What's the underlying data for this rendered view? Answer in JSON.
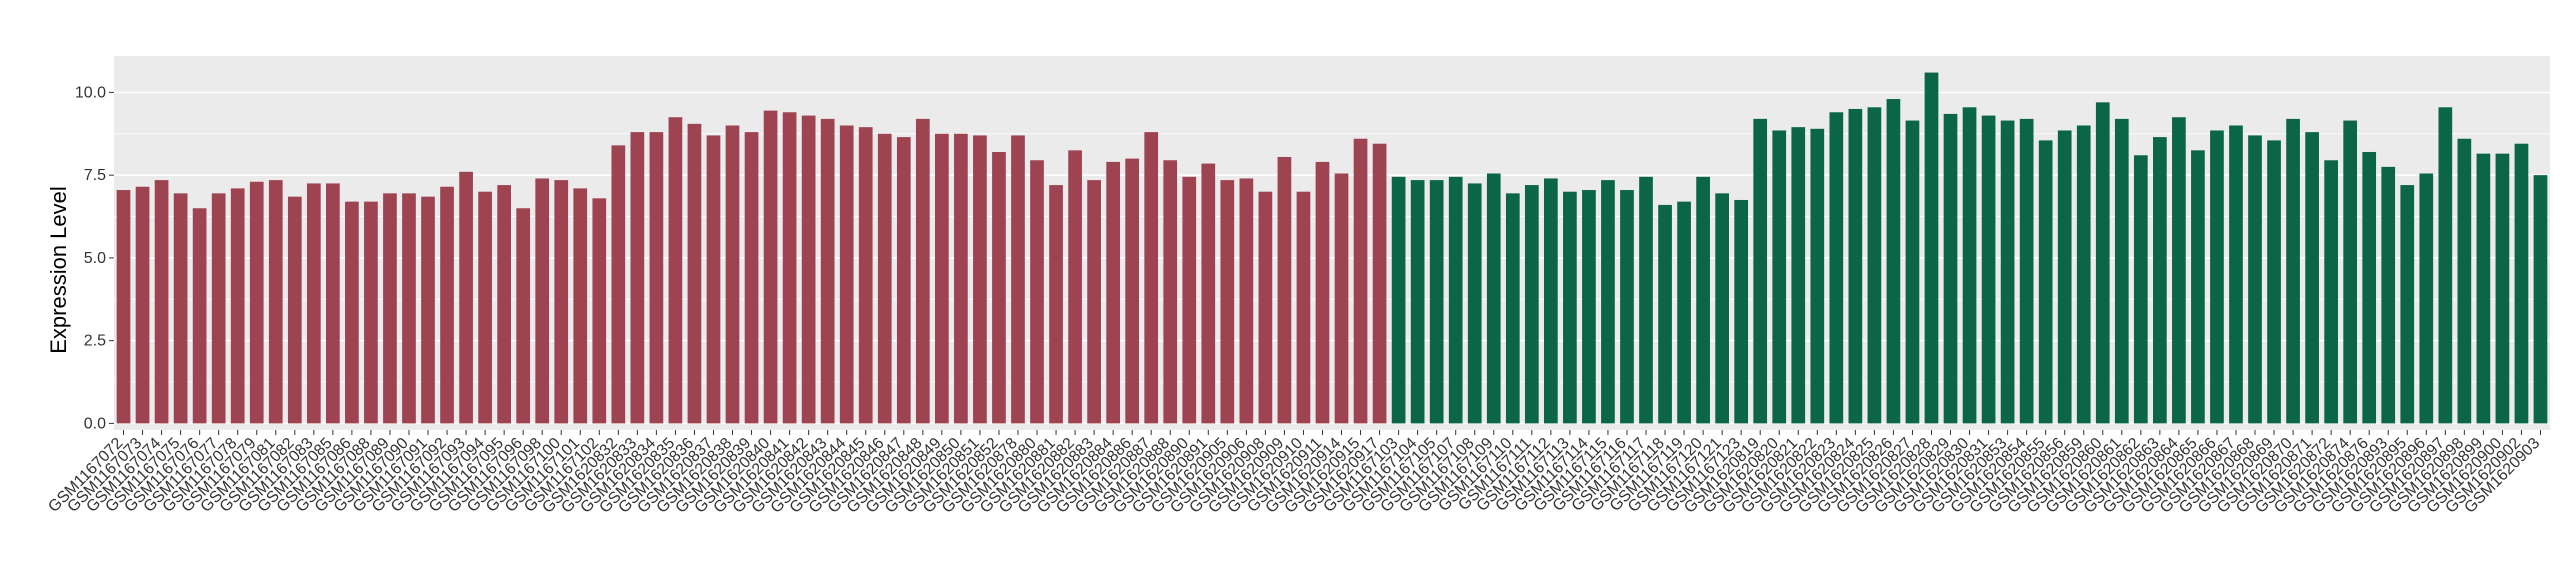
{
  "chart_data": {
    "type": "bar",
    "title": "",
    "xlabel": "",
    "ylabel": "Expression Level",
    "ylim": [
      -0.2,
      11.1
    ],
    "yticks": [
      "0.0",
      "2.5",
      "5.0",
      "7.5",
      "10.0"
    ],
    "ytick_values": [
      0,
      2.5,
      5,
      7.5,
      10
    ],
    "grid": true,
    "legend": "none",
    "panel_color": "#ebebeb",
    "grid_color": "#ffffff",
    "series": [
      {
        "color": "#9e4350",
        "categories": [
          "GSM1167072",
          "GSM1167073",
          "GSM1167074",
          "GSM1167075",
          "GSM1167076",
          "GSM1167077",
          "GSM1167078",
          "GSM1167079",
          "GSM1167081",
          "GSM1167082",
          "GSM1167083",
          "GSM1167085",
          "GSM1167086",
          "GSM1167088",
          "GSM1167089",
          "GSM1167090",
          "GSM1167091",
          "GSM1167092",
          "GSM1167093",
          "GSM1167094",
          "GSM1167095",
          "GSM1167096",
          "GSM1167098",
          "GSM1167100",
          "GSM1167101",
          "GSM1167102",
          "GSM1620832",
          "GSM1620833",
          "GSM1620834",
          "GSM1620835",
          "GSM1620836",
          "GSM1620837",
          "GSM1620838",
          "GSM1620839",
          "GSM1620840",
          "GSM1620841",
          "GSM1620842",
          "GSM1620843",
          "GSM1620844",
          "GSM1620845",
          "GSM1620846",
          "GSM1620847",
          "GSM1620848",
          "GSM1620849",
          "GSM1620850",
          "GSM1620851",
          "GSM1620852",
          "GSM1620878",
          "GSM1620880",
          "GSM1620881",
          "GSM1620882",
          "GSM1620883",
          "GSM1620884",
          "GSM1620886",
          "GSM1620887",
          "GSM1620888",
          "GSM1620890",
          "GSM1620891",
          "GSM1620905",
          "GSM1620906",
          "GSM1620908",
          "GSM1620909",
          "GSM1620910",
          "GSM1620911",
          "GSM1620914",
          "GSM1620915",
          "GSM1620917"
        ],
        "values": [
          7.05,
          7.15,
          7.35,
          6.95,
          6.5,
          6.95,
          7.1,
          7.3,
          7.35,
          6.85,
          7.25,
          7.25,
          6.7,
          6.7,
          6.95,
          6.95,
          6.85,
          7.15,
          7.6,
          7.0,
          7.2,
          6.5,
          7.4,
          7.35,
          7.1,
          6.8,
          8.4,
          8.8,
          8.8,
          9.25,
          9.05,
          8.7,
          9.0,
          8.8,
          9.45,
          9.4,
          9.3,
          9.2,
          9.0,
          8.95,
          8.75,
          8.65,
          9.2,
          8.75,
          8.75,
          8.7,
          8.2,
          8.7,
          7.95,
          7.2,
          8.25,
          7.35,
          7.9,
          8.0,
          8.8,
          7.95,
          7.45,
          7.85,
          7.35,
          7.4,
          7.0,
          8.05,
          7.0,
          7.9,
          7.55,
          8.6,
          8.45
        ]
      },
      {
        "color": "#0a6646",
        "categories": [
          "GSM1167103",
          "GSM1167104",
          "GSM1167105",
          "GSM1167107",
          "GSM1167108",
          "GSM1167109",
          "GSM1167110",
          "GSM1167111",
          "GSM1167112",
          "GSM1167113",
          "GSM1167114",
          "GSM1167115",
          "GSM1167116",
          "GSM1167117",
          "GSM1167118",
          "GSM1167119",
          "GSM1167120",
          "GSM1167121",
          "GSM1167123",
          "GSM1620819",
          "GSM1620820",
          "GSM1620821",
          "GSM1620822",
          "GSM1620823",
          "GSM1620824",
          "GSM1620825",
          "GSM1620826",
          "GSM1620827",
          "GSM1620828",
          "GSM1620829",
          "GSM1620830",
          "GSM1620831",
          "GSM1620853",
          "GSM1620854",
          "GSM1620855",
          "GSM1620856",
          "GSM1620859",
          "GSM1620860",
          "GSM1620861",
          "GSM1620862",
          "GSM1620863",
          "GSM1620864",
          "GSM1620865",
          "GSM1620866",
          "GSM1620867",
          "GSM1620868",
          "GSM1620869",
          "GSM1620870",
          "GSM1620871",
          "GSM1620872",
          "GSM1620874",
          "GSM1620876",
          "GSM1620893",
          "GSM1620895",
          "GSM1620896",
          "GSM1620897",
          "GSM1620898",
          "GSM1620899",
          "GSM1620900",
          "GSM1620902",
          "GSM1620903"
        ],
        "values": [
          7.45,
          7.35,
          7.35,
          7.45,
          7.25,
          7.55,
          6.95,
          7.2,
          7.4,
          7.0,
          7.05,
          7.35,
          7.05,
          7.45,
          6.6,
          6.7,
          7.45,
          6.95,
          6.75,
          9.2,
          8.85,
          8.95,
          8.9,
          9.4,
          9.5,
          9.55,
          9.8,
          9.15,
          10.6,
          9.35,
          9.55,
          9.3,
          9.15,
          9.2,
          8.55,
          8.85,
          9.0,
          9.7,
          9.2,
          8.1,
          8.65,
          9.25,
          8.25,
          8.85,
          9.0,
          8.7,
          8.55,
          9.2,
          8.8,
          7.95,
          9.15,
          8.2,
          7.75,
          7.2,
          7.55,
          9.55,
          8.6,
          8.15,
          8.15,
          8.45,
          7.5
        ]
      }
    ]
  }
}
